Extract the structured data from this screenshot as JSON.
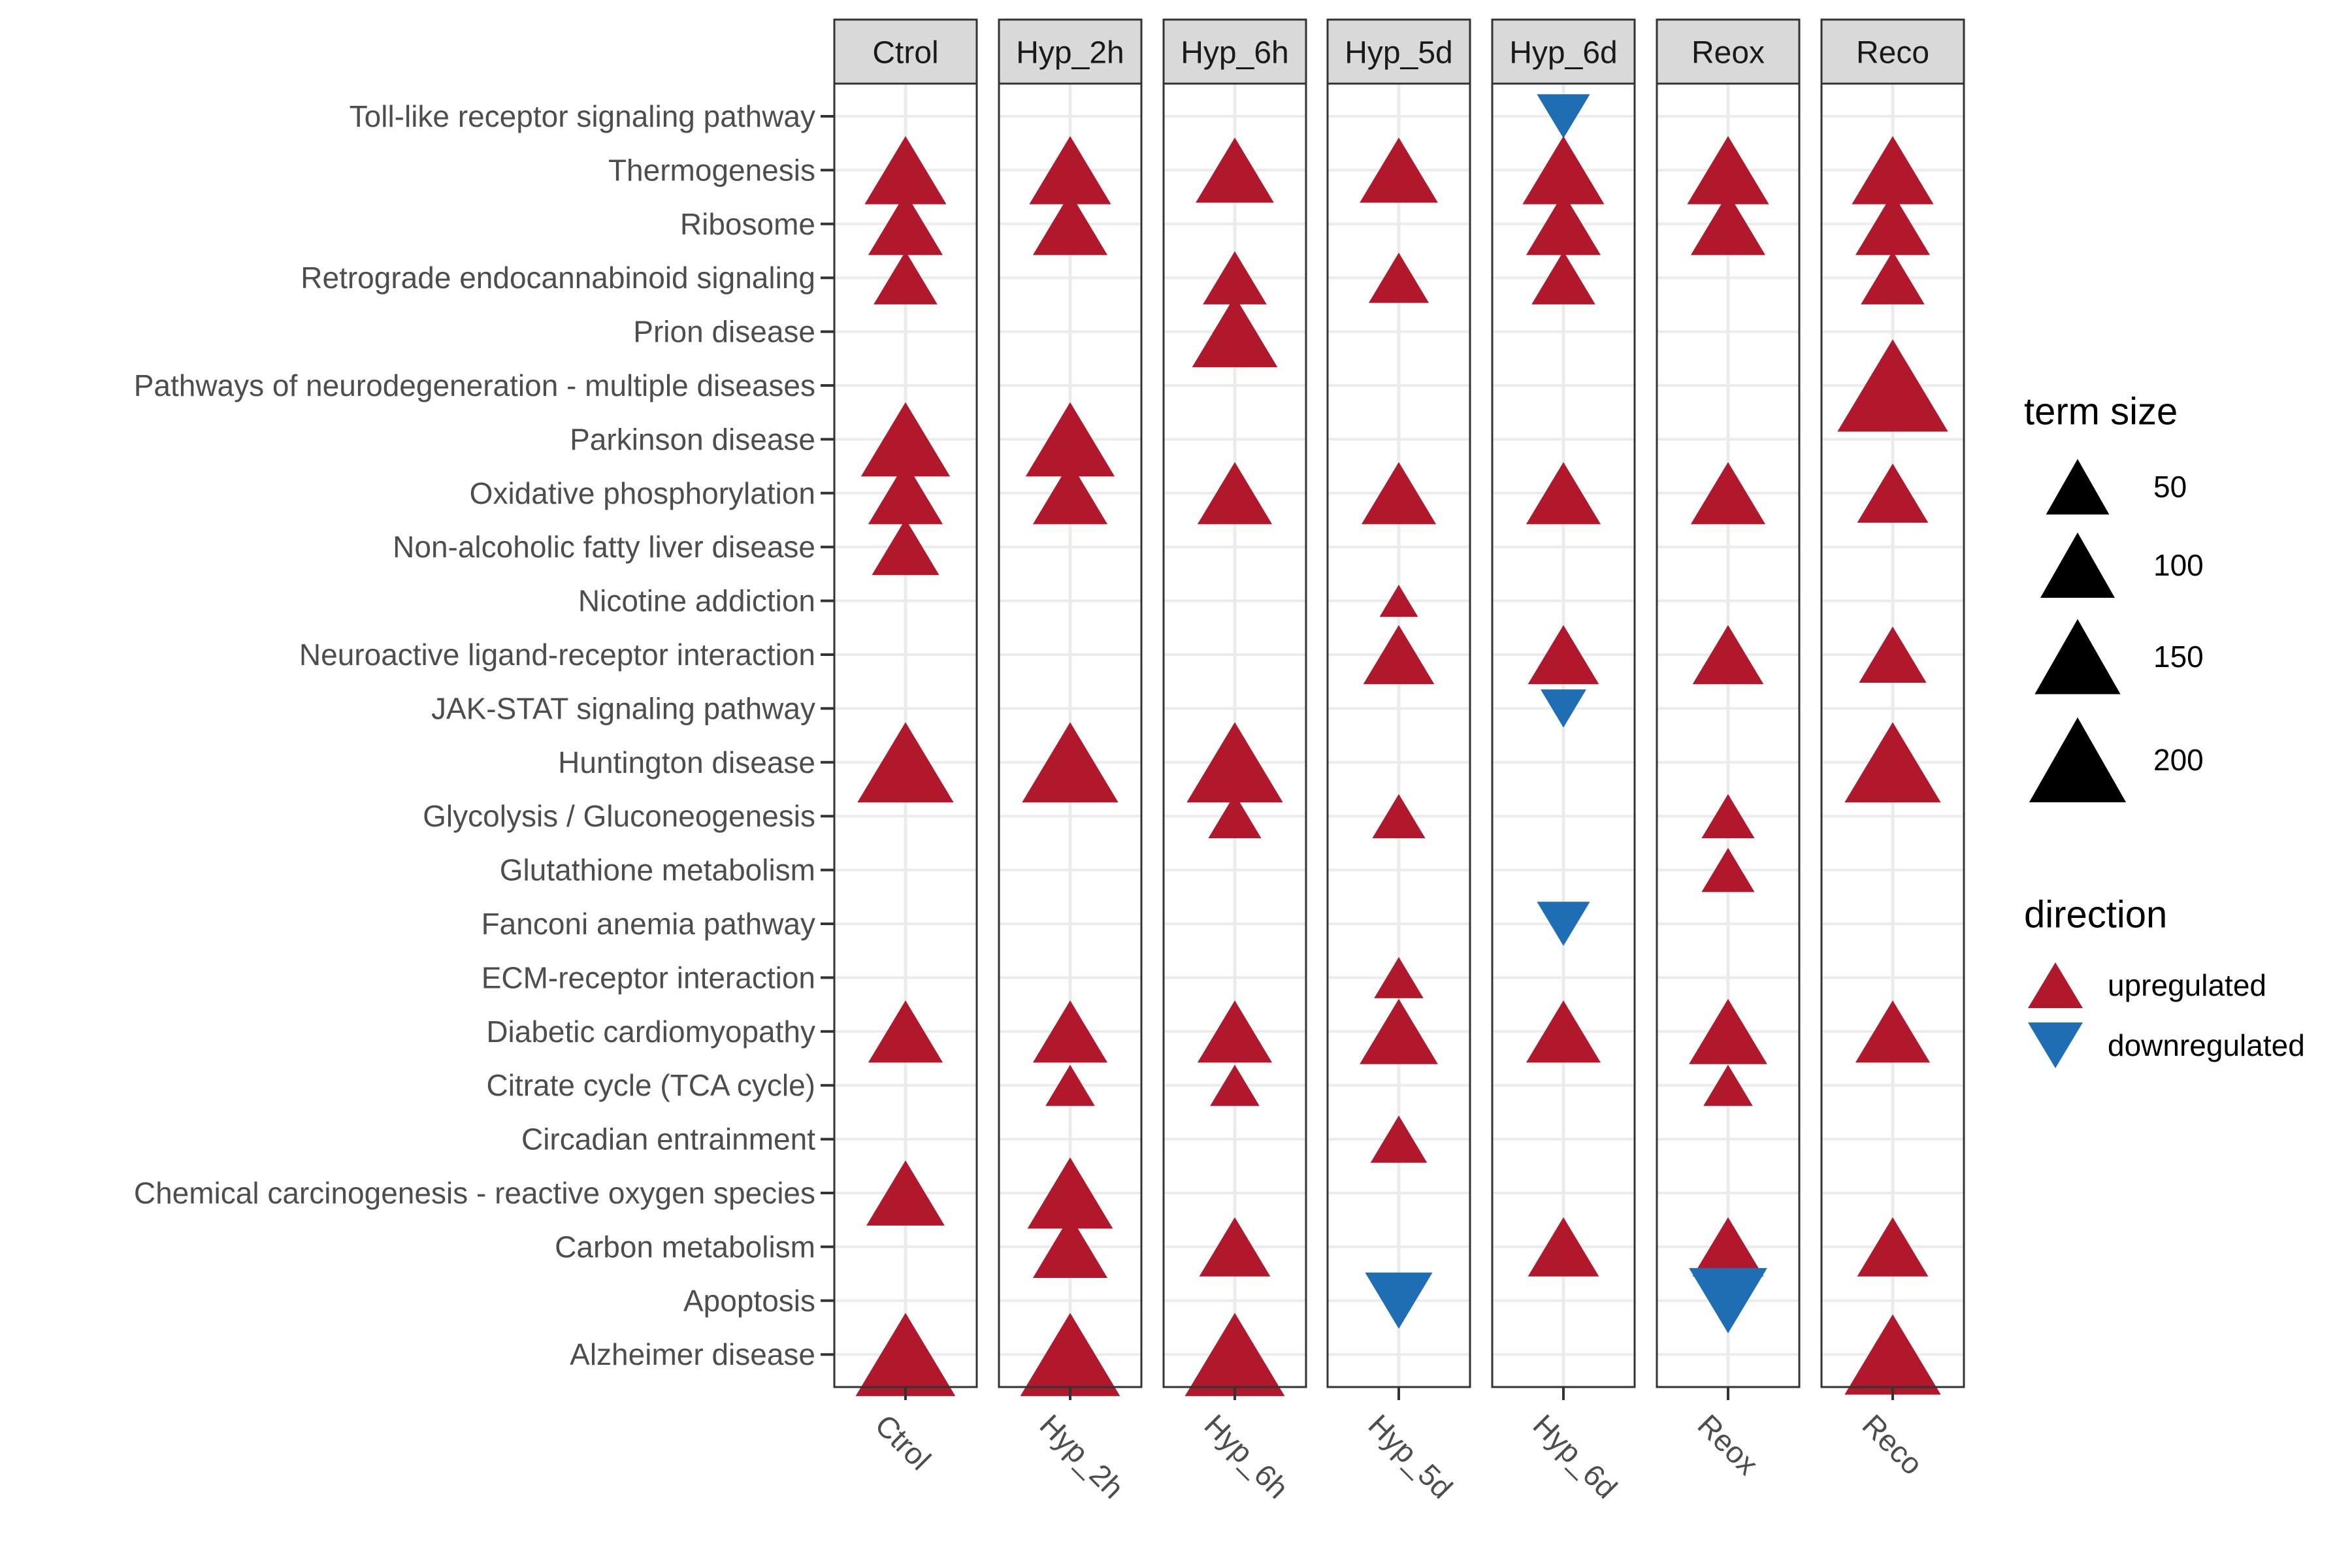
{
  "chart_data": {
    "type": "scatter",
    "facets": [
      "Ctrol",
      "Hyp_2h",
      "Hyp_6h",
      "Hyp_5d",
      "Hyp_6d",
      "Reox",
      "Reco"
    ],
    "x_labels": [
      "Ctrol",
      "Hyp_2h",
      "Hyp_6h",
      "Hyp_5d",
      "Hyp_6d",
      "Reox",
      "Reco"
    ],
    "y_categories": [
      "Toll-like receptor signaling pathway",
      "Thermogenesis",
      "Ribosome",
      "Retrograde endocannabinoid signaling",
      "Prion disease",
      "Pathways of neurodegeneration - multiple diseases",
      "Parkinson disease",
      "Oxidative phosphorylation",
      "Non-alcoholic fatty liver disease",
      "Nicotine addiction",
      "Neuroactive ligand-receptor interaction",
      "JAK-STAT signaling pathway",
      "Huntington disease",
      "Glycolysis / Gluconeogenesis",
      "Glutathione metabolism",
      "Fanconi anemia pathway",
      "ECM-receptor interaction",
      "Diabetic cardiomyopathy",
      "Citrate cycle (TCA cycle)",
      "Circadian entrainment",
      "Chemical carcinogenesis - reactive oxygen species",
      "Carbon metabolism",
      "Apoptosis",
      "Alzheimer disease"
    ],
    "points": [
      {
        "facet": "Ctrol",
        "term": "Thermogenesis",
        "size": 140,
        "direction": "upregulated"
      },
      {
        "facet": "Ctrol",
        "term": "Ribosome",
        "size": 120,
        "direction": "upregulated"
      },
      {
        "facet": "Ctrol",
        "term": "Retrograde endocannabinoid signaling",
        "size": 90,
        "direction": "upregulated"
      },
      {
        "facet": "Ctrol",
        "term": "Parkinson disease",
        "size": 160,
        "direction": "upregulated"
      },
      {
        "facet": "Ctrol",
        "term": "Oxidative phosphorylation",
        "size": 120,
        "direction": "upregulated"
      },
      {
        "facet": "Ctrol",
        "term": "Non-alcoholic fatty liver disease",
        "size": 100,
        "direction": "upregulated"
      },
      {
        "facet": "Ctrol",
        "term": "Huntington disease",
        "size": 180,
        "direction": "upregulated"
      },
      {
        "facet": "Ctrol",
        "term": "Diabetic cardiomyopathy",
        "size": 120,
        "direction": "upregulated"
      },
      {
        "facet": "Ctrol",
        "term": "Chemical carcinogenesis - reactive oxygen species",
        "size": 130,
        "direction": "upregulated"
      },
      {
        "facet": "Ctrol",
        "term": "Alzheimer disease",
        "size": 190,
        "direction": "upregulated"
      },
      {
        "facet": "Hyp_2h",
        "term": "Thermogenesis",
        "size": 140,
        "direction": "upregulated"
      },
      {
        "facet": "Hyp_2h",
        "term": "Ribosome",
        "size": 120,
        "direction": "upregulated"
      },
      {
        "facet": "Hyp_2h",
        "term": "Parkinson disease",
        "size": 160,
        "direction": "upregulated"
      },
      {
        "facet": "Hyp_2h",
        "term": "Oxidative phosphorylation",
        "size": 120,
        "direction": "upregulated"
      },
      {
        "facet": "Hyp_2h",
        "term": "Huntington disease",
        "size": 180,
        "direction": "upregulated"
      },
      {
        "facet": "Hyp_2h",
        "term": "Diabetic cardiomyopathy",
        "size": 120,
        "direction": "upregulated"
      },
      {
        "facet": "Hyp_2h",
        "term": "Citrate cycle (TCA cycle)",
        "size": 50,
        "direction": "upregulated"
      },
      {
        "facet": "Hyp_2h",
        "term": "Chemical carcinogenesis - reactive oxygen species",
        "size": 150,
        "direction": "upregulated"
      },
      {
        "facet": "Hyp_2h",
        "term": "Carbon metabolism",
        "size": 120,
        "direction": "upregulated"
      },
      {
        "facet": "Hyp_2h",
        "term": "Alzheimer disease",
        "size": 190,
        "direction": "upregulated"
      },
      {
        "facet": "Hyp_6h",
        "term": "Thermogenesis",
        "size": 130,
        "direction": "upregulated"
      },
      {
        "facet": "Hyp_6h",
        "term": "Retrograde endocannabinoid signaling",
        "size": 90,
        "direction": "upregulated"
      },
      {
        "facet": "Hyp_6h",
        "term": "Prion disease",
        "size": 150,
        "direction": "upregulated"
      },
      {
        "facet": "Hyp_6h",
        "term": "Oxidative phosphorylation",
        "size": 120,
        "direction": "upregulated"
      },
      {
        "facet": "Hyp_6h",
        "term": "Huntington disease",
        "size": 180,
        "direction": "upregulated"
      },
      {
        "facet": "Hyp_6h",
        "term": "Glycolysis / Gluconeogenesis",
        "size": 60,
        "direction": "upregulated"
      },
      {
        "facet": "Hyp_6h",
        "term": "Diabetic cardiomyopathy",
        "size": 120,
        "direction": "upregulated"
      },
      {
        "facet": "Hyp_6h",
        "term": "Citrate cycle (TCA cycle)",
        "size": 50,
        "direction": "upregulated"
      },
      {
        "facet": "Hyp_6h",
        "term": "Carbon metabolism",
        "size": 110,
        "direction": "upregulated"
      },
      {
        "facet": "Hyp_6h",
        "term": "Alzheimer disease",
        "size": 190,
        "direction": "upregulated"
      },
      {
        "facet": "Hyp_5d",
        "term": "Thermogenesis",
        "size": 130,
        "direction": "upregulated"
      },
      {
        "facet": "Hyp_5d",
        "term": "Retrograde endocannabinoid signaling",
        "size": 80,
        "direction": "upregulated"
      },
      {
        "facet": "Hyp_5d",
        "term": "Oxidative phosphorylation",
        "size": 120,
        "direction": "upregulated"
      },
      {
        "facet": "Hyp_5d",
        "term": "Nicotine addiction",
        "size": 20,
        "direction": "upregulated"
      },
      {
        "facet": "Hyp_5d",
        "term": "Neuroactive ligand-receptor interaction",
        "size": 110,
        "direction": "upregulated"
      },
      {
        "facet": "Hyp_5d",
        "term": "Glycolysis / Gluconeogenesis",
        "size": 60,
        "direction": "upregulated"
      },
      {
        "facet": "Hyp_5d",
        "term": "ECM-receptor interaction",
        "size": 50,
        "direction": "upregulated"
      },
      {
        "facet": "Hyp_5d",
        "term": "Diabetic cardiomyopathy",
        "size": 130,
        "direction": "upregulated"
      },
      {
        "facet": "Hyp_5d",
        "term": "Circadian entrainment",
        "size": 70,
        "direction": "upregulated"
      },
      {
        "facet": "Hyp_5d",
        "term": "Apoptosis",
        "size": 100,
        "direction": "downregulated"
      },
      {
        "facet": "Hyp_6d",
        "term": "Toll-like receptor signaling pathway",
        "size": 60,
        "direction": "downregulated"
      },
      {
        "facet": "Hyp_6d",
        "term": "Thermogenesis",
        "size": 140,
        "direction": "upregulated"
      },
      {
        "facet": "Hyp_6d",
        "term": "Ribosome",
        "size": 120,
        "direction": "upregulated"
      },
      {
        "facet": "Hyp_6d",
        "term": "Retrograde endocannabinoid signaling",
        "size": 90,
        "direction": "upregulated"
      },
      {
        "facet": "Hyp_6d",
        "term": "Oxidative phosphorylation",
        "size": 120,
        "direction": "upregulated"
      },
      {
        "facet": "Hyp_6d",
        "term": "Neuroactive ligand-receptor interaction",
        "size": 110,
        "direction": "upregulated"
      },
      {
        "facet": "Hyp_6d",
        "term": "JAK-STAT signaling pathway",
        "size": 40,
        "direction": "downregulated"
      },
      {
        "facet": "Hyp_6d",
        "term": "Fanconi anemia pathway",
        "size": 60,
        "direction": "downregulated"
      },
      {
        "facet": "Hyp_6d",
        "term": "Diabetic cardiomyopathy",
        "size": 120,
        "direction": "upregulated"
      },
      {
        "facet": "Hyp_6d",
        "term": "Carbon metabolism",
        "size": 110,
        "direction": "upregulated"
      },
      {
        "facet": "Reox",
        "term": "Thermogenesis",
        "size": 140,
        "direction": "upregulated"
      },
      {
        "facet": "Reox",
        "term": "Ribosome",
        "size": 120,
        "direction": "upregulated"
      },
      {
        "facet": "Reox",
        "term": "Oxidative phosphorylation",
        "size": 120,
        "direction": "upregulated"
      },
      {
        "facet": "Reox",
        "term": "Neuroactive ligand-receptor interaction",
        "size": 110,
        "direction": "upregulated"
      },
      {
        "facet": "Reox",
        "term": "Glycolysis / Gluconeogenesis",
        "size": 60,
        "direction": "upregulated"
      },
      {
        "facet": "Reox",
        "term": "Glutathione metabolism",
        "size": 60,
        "direction": "upregulated"
      },
      {
        "facet": "Reox",
        "term": "Diabetic cardiomyopathy",
        "size": 130,
        "direction": "upregulated"
      },
      {
        "facet": "Reox",
        "term": "Citrate cycle (TCA cycle)",
        "size": 50,
        "direction": "upregulated"
      },
      {
        "facet": "Reox",
        "term": "Carbon metabolism",
        "size": 110,
        "direction": "upregulated"
      },
      {
        "facet": "Reox",
        "term": "Apoptosis",
        "size": 130,
        "direction": "downregulated"
      },
      {
        "facet": "Reco",
        "term": "Thermogenesis",
        "size": 140,
        "direction": "upregulated"
      },
      {
        "facet": "Reco",
        "term": "Ribosome",
        "size": 120,
        "direction": "upregulated"
      },
      {
        "facet": "Reco",
        "term": "Retrograde endocannabinoid signaling",
        "size": 90,
        "direction": "upregulated"
      },
      {
        "facet": "Reco",
        "term": "Pathways of neurodegeneration - multiple diseases",
        "size": 220,
        "direction": "upregulated"
      },
      {
        "facet": "Reco",
        "term": "Oxidative phosphorylation",
        "size": 110,
        "direction": "upregulated"
      },
      {
        "facet": "Reco",
        "term": "Neuroactive ligand-receptor interaction",
        "size": 100,
        "direction": "upregulated"
      },
      {
        "facet": "Reco",
        "term": "Huntington disease",
        "size": 180,
        "direction": "upregulated"
      },
      {
        "facet": "Reco",
        "term": "Diabetic cardiomyopathy",
        "size": 120,
        "direction": "upregulated"
      },
      {
        "facet": "Reco",
        "term": "Carbon metabolism",
        "size": 110,
        "direction": "upregulated"
      },
      {
        "facet": "Reco",
        "term": "Alzheimer disease",
        "size": 180,
        "direction": "upregulated"
      }
    ],
    "legend": {
      "size_title": "term size",
      "size_breaks": [
        {
          "label": "50",
          "value": 50
        },
        {
          "label": "100",
          "value": 100
        },
        {
          "label": "150",
          "value": 150
        },
        {
          "label": "200",
          "value": 200
        }
      ],
      "direction_title": "direction",
      "direction_items": [
        {
          "label": "upregulated",
          "direction": "upregulated"
        },
        {
          "label": "downregulated",
          "direction": "downregulated"
        }
      ]
    },
    "colors": {
      "upregulated": "#B2182B",
      "downregulated": "#1F6EB4",
      "strip_fill": "#D9D9D9",
      "grid": "#EBEBEB",
      "legend_size": "#000000"
    },
    "grid": true,
    "legend_position": "right"
  }
}
